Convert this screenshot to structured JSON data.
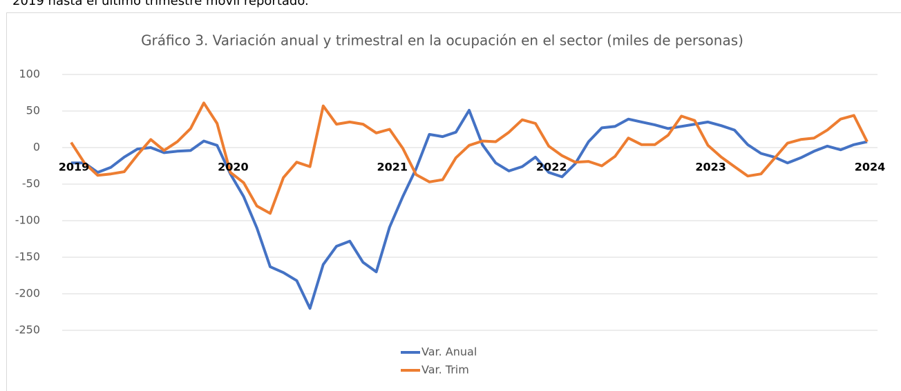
{
  "header_text": "2019 hasta el último trimestre móvil reportado.",
  "chart_data": {
    "type": "line",
    "title": "Gráfico 3. Variación anual y trimestral en la ocupación en el sector (miles de personas)",
    "categories": [
      "2019",
      null,
      null,
      null,
      null,
      null,
      null,
      null,
      null,
      null,
      null,
      null,
      "2020",
      null,
      null,
      null,
      null,
      null,
      null,
      null,
      null,
      null,
      null,
      null,
      "2021",
      null,
      null,
      null,
      null,
      null,
      null,
      null,
      null,
      null,
      null,
      null,
      "2022",
      null,
      null,
      null,
      null,
      null,
      null,
      null,
      null,
      null,
      null,
      null,
      "2023",
      null,
      null,
      null,
      null,
      null,
      null,
      null,
      null,
      null,
      null,
      null,
      "2024"
    ],
    "series": [
      {
        "name": "Var. Anual",
        "color": "#4472c4",
        "values": [
          -21,
          -21,
          -34,
          -27,
          -13,
          -2,
          0,
          -7,
          -5,
          -4,
          9,
          3,
          -36,
          -67,
          -110,
          -163,
          -171,
          -182,
          -220,
          -160,
          -135,
          -128,
          -157,
          -170,
          -109,
          -67,
          -29,
          18,
          15,
          21,
          51,
          4,
          -21,
          -32,
          -26,
          -13,
          -34,
          -40,
          -22,
          8,
          27,
          29,
          39,
          35,
          31,
          26,
          29,
          32,
          35,
          30,
          24,
          4,
          -8,
          -13,
          -21,
          -14,
          -5,
          2,
          -3,
          4,
          8
        ]
      },
      {
        "name": "Var. Trim",
        "color": "#ed7d31",
        "values": [
          7,
          -21,
          -38,
          -36,
          -33,
          -10,
          11,
          -4,
          8,
          26,
          61,
          33,
          -34,
          -48,
          -80,
          -90,
          -41,
          -20,
          -26,
          57,
          32,
          35,
          32,
          20,
          25,
          -1,
          -37,
          -47,
          -44,
          -14,
          3,
          9,
          8,
          21,
          38,
          33,
          2,
          -11,
          -20,
          -19,
          -25,
          -12,
          13,
          4,
          4,
          17,
          43,
          37,
          3,
          -13,
          -26,
          -39,
          -36,
          -15,
          6,
          11,
          13,
          24,
          39,
          44,
          8
        ]
      }
    ],
    "ylim": [
      -250,
      100
    ],
    "yticks": [
      -250,
      -200,
      -150,
      -100,
      -50,
      0,
      50,
      100
    ],
    "grid": true,
    "legend": "bottom"
  }
}
